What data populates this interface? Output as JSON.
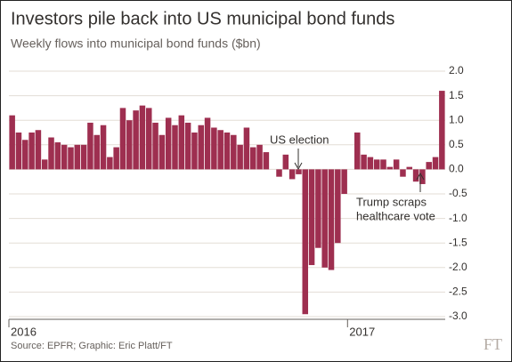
{
  "chart_data": {
    "type": "bar",
    "title": "Investors pile back into US municipal bond funds",
    "subtitle": "Weekly flows into municipal bond funds ($bn)",
    "source": "Source: EPFR; Graphic: Eric Platt/FT",
    "logo": "FT",
    "annotations": [
      "US election",
      "Trump scraps",
      "healthcare vote"
    ],
    "categories": [
      "2016",
      null,
      null,
      null,
      null,
      null,
      null,
      null,
      null,
      null,
      null,
      null,
      null,
      null,
      null,
      null,
      null,
      null,
      null,
      null,
      null,
      null,
      null,
      null,
      null,
      null,
      null,
      null,
      null,
      null,
      null,
      null,
      null,
      null,
      null,
      null,
      null,
      null,
      null,
      null,
      null,
      null,
      null,
      null,
      null,
      null,
      null,
      null,
      null,
      null,
      null,
      null,
      "2017",
      null,
      null,
      null,
      null,
      null,
      null,
      null,
      null,
      null,
      null,
      null,
      null,
      null,
      null
    ],
    "values": [
      1.1,
      0.75,
      0.6,
      0.75,
      0.8,
      0.2,
      0.65,
      0.55,
      0.5,
      0.45,
      0.5,
      0.5,
      0.95,
      0.7,
      0.9,
      0.25,
      0.45,
      1.25,
      1.0,
      1.2,
      1.3,
      1.25,
      0.95,
      0.7,
      1.05,
      0.9,
      1.1,
      0.95,
      0.75,
      0.9,
      1.05,
      0.85,
      0.8,
      0.75,
      0.7,
      0.5,
      0.85,
      0.45,
      0.5,
      0.35,
      0.0,
      -0.15,
      0.3,
      -0.2,
      -0.1,
      -2.95,
      -1.95,
      -1.6,
      -2.0,
      -2.05,
      -1.5,
      -0.5,
      0.0,
      0.75,
      0.3,
      0.25,
      0.2,
      0.2,
      0.05,
      0.2,
      -0.15,
      0.05,
      -0.25,
      -0.3,
      0.15,
      0.25,
      1.6
    ],
    "color": "#9e2f50",
    "ylim": [
      -3.0,
      2.0
    ],
    "yticks": [
      {
        "value": 2.0,
        "label": "2.0"
      },
      {
        "value": 1.5,
        "label": "1.5"
      },
      {
        "value": 1.0,
        "label": "1.0"
      },
      {
        "value": 0.5,
        "label": "0.5"
      },
      {
        "value": 0.0,
        "label": "0.0"
      },
      {
        "value": -0.5,
        "label": "-0.5"
      },
      {
        "value": -1.0,
        "label": "-1.0"
      },
      {
        "value": -1.5,
        "label": "-1.5"
      },
      {
        "value": -2.0,
        "label": "-2.0"
      },
      {
        "value": -2.5,
        "label": "-2.5"
      },
      {
        "value": -3.0,
        "label": "-3.0"
      }
    ],
    "grid": true
  }
}
